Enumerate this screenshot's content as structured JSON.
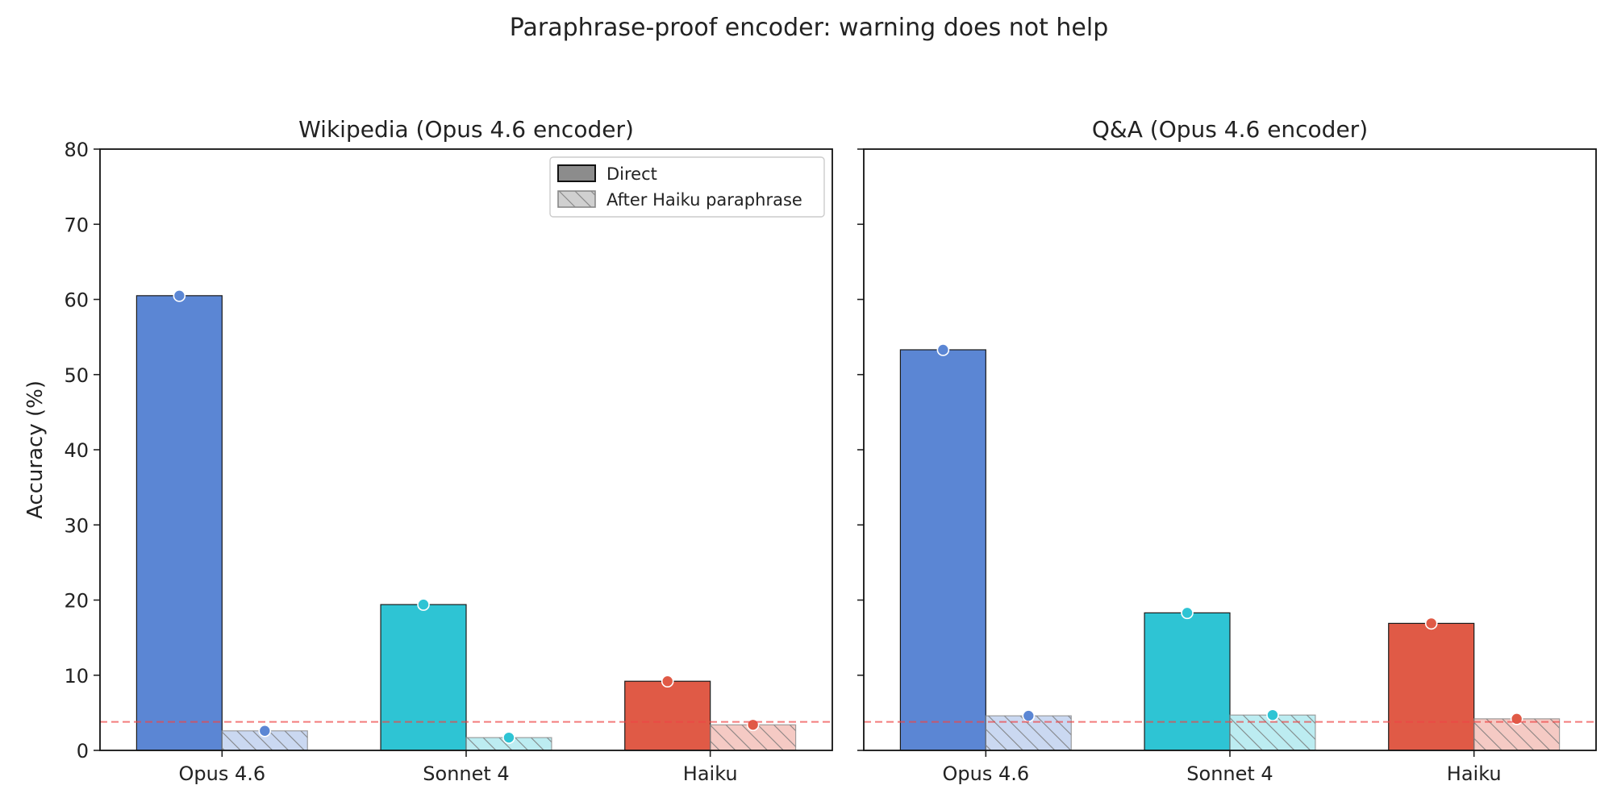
{
  "figure": {
    "title": "Paraphrase-proof encoder: warning does not help"
  },
  "legend": {
    "direct_label": "Direct",
    "paraphrase_label": "After Haiku paraphrase"
  },
  "colors": {
    "Opus 4.6": "#5b86d4",
    "Sonnet 4": "#2ec4d4",
    "Haiku": "#e05a46",
    "chance_line": "#ee4444"
  },
  "chart_data": [
    {
      "type": "bar",
      "title": "Wikipedia (Opus 4.6 encoder)",
      "xlabel": "",
      "ylabel": "Accuracy (%)",
      "categories": [
        "Opus 4.6",
        "Sonnet 4",
        "Haiku"
      ],
      "series": [
        {
          "name": "Direct",
          "values": [
            60.5,
            19.4,
            9.2
          ]
        },
        {
          "name": "After Haiku paraphrase",
          "values": [
            2.6,
            1.7,
            3.4
          ]
        }
      ],
      "ylim": [
        0,
        80
      ],
      "yticks": [
        0,
        10,
        20,
        30,
        40,
        50,
        60,
        70,
        80
      ],
      "reference_line": 3.8,
      "legend_position": "top-right"
    },
    {
      "type": "bar",
      "title": "Q&A (Opus 4.6 encoder)",
      "xlabel": "",
      "ylabel": "",
      "categories": [
        "Opus 4.6",
        "Sonnet 4",
        "Haiku"
      ],
      "series": [
        {
          "name": "Direct",
          "values": [
            53.3,
            18.3,
            16.9
          ]
        },
        {
          "name": "After Haiku paraphrase",
          "values": [
            4.6,
            4.7,
            4.2
          ]
        }
      ],
      "ylim": [
        0,
        80
      ],
      "yticks": [
        0,
        10,
        20,
        30,
        40,
        50,
        60,
        70,
        80
      ],
      "reference_line": 3.8,
      "legend_position": "none"
    }
  ]
}
